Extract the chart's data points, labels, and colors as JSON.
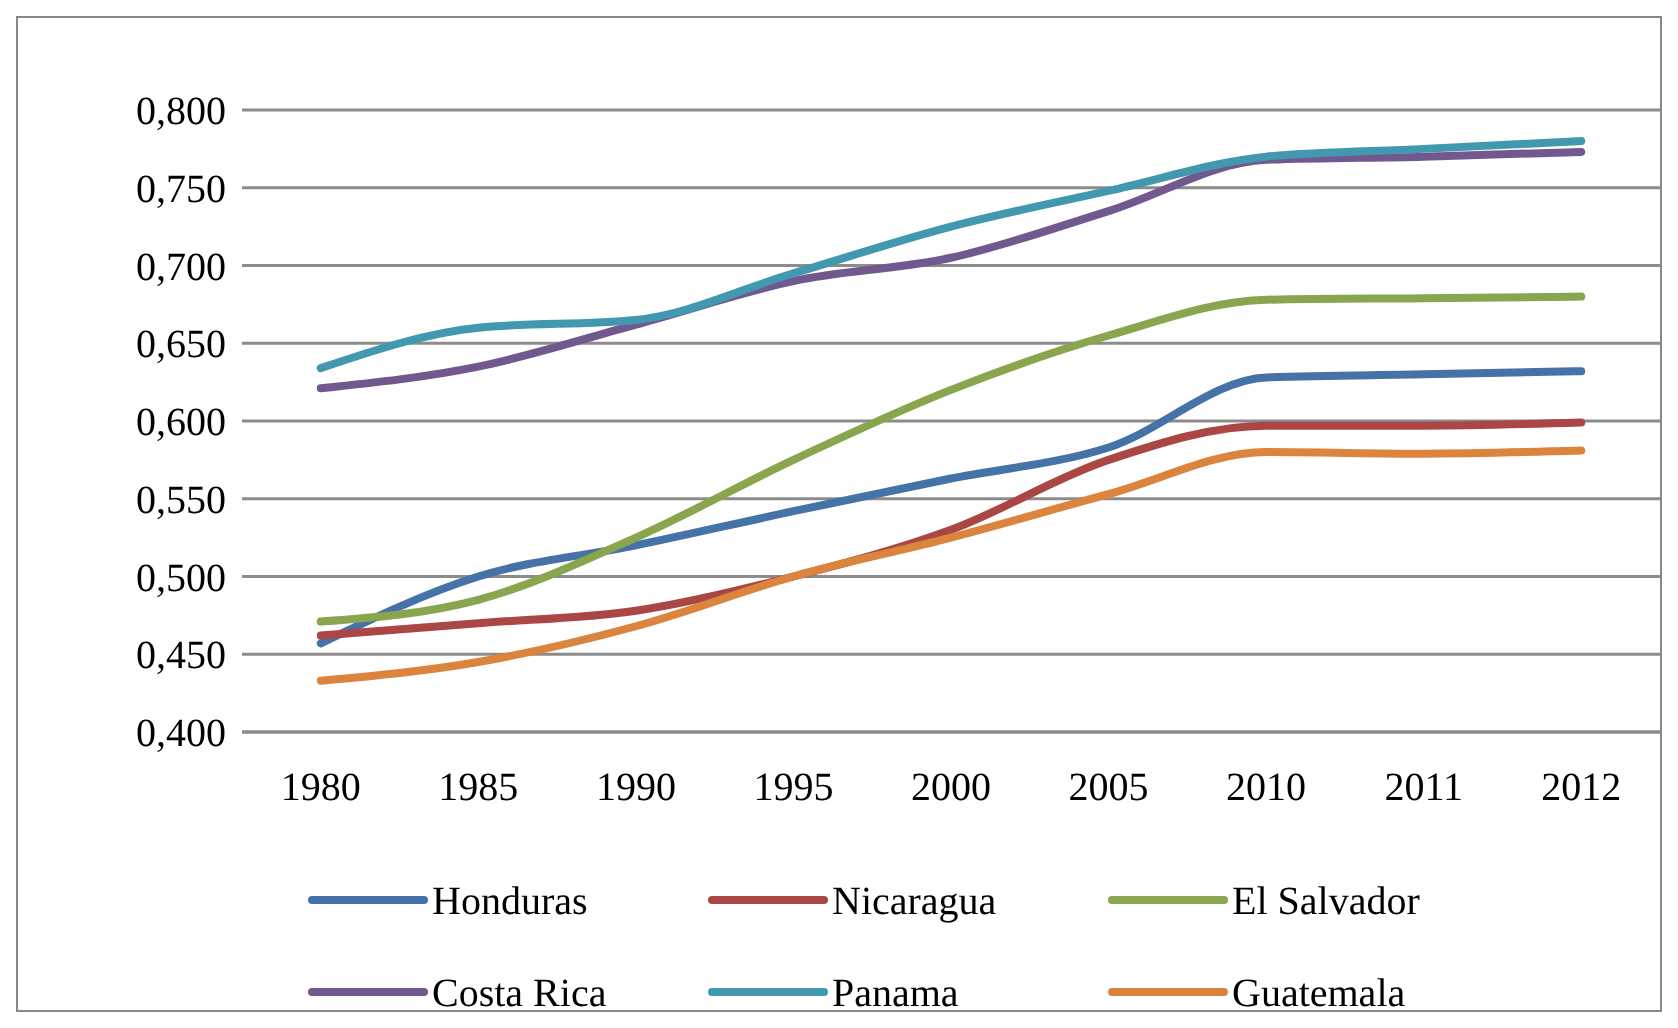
{
  "chart_data": {
    "type": "line",
    "categories": [
      "1980",
      "1985",
      "1990",
      "1995",
      "2000",
      "2005",
      "2010",
      "2011",
      "2012"
    ],
    "series": [
      {
        "name": "Honduras",
        "color": "#4572a7",
        "values": [
          0.457,
          0.5,
          0.52,
          0.542,
          0.563,
          0.583,
          0.628,
          0.63,
          0.632
        ]
      },
      {
        "name": "Nicaragua",
        "color": "#aa4643",
        "values": [
          0.462,
          0.47,
          0.478,
          0.5,
          0.53,
          0.575,
          0.597,
          0.597,
          0.599
        ]
      },
      {
        "name": "El Salvador",
        "color": "#89a54e",
        "values": [
          0.471,
          0.485,
          0.525,
          0.575,
          0.62,
          0.655,
          0.678,
          0.679,
          0.68
        ]
      },
      {
        "name": "Costa Rica",
        "color": "#71588f",
        "values": [
          0.621,
          0.635,
          0.662,
          0.69,
          0.705,
          0.735,
          0.768,
          0.77,
          0.773
        ]
      },
      {
        "name": "Panama",
        "color": "#4198af",
        "values": [
          0.634,
          0.66,
          0.665,
          0.695,
          0.725,
          0.748,
          0.77,
          0.775,
          0.78
        ]
      },
      {
        "name": "Guatemala",
        "color": "#db843d",
        "values": [
          0.433,
          0.445,
          0.468,
          0.5,
          0.525,
          0.553,
          0.58,
          0.579,
          0.581
        ]
      }
    ],
    "ylim": [
      0.4,
      0.8
    ],
    "yticks": [
      {
        "value": 0.4,
        "label": "0,400"
      },
      {
        "value": 0.45,
        "label": "0,450"
      },
      {
        "value": 0.5,
        "label": "0,500"
      },
      {
        "value": 0.55,
        "label": "0,550"
      },
      {
        "value": 0.6,
        "label": "0,600"
      },
      {
        "value": 0.65,
        "label": "0,650"
      },
      {
        "value": 0.7,
        "label": "0,700"
      },
      {
        "value": 0.75,
        "label": "0,750"
      },
      {
        "value": 0.8,
        "label": "0,800"
      }
    ],
    "grid": "y",
    "legend": "bottom",
    "marker": "none",
    "line_style": "solid"
  }
}
